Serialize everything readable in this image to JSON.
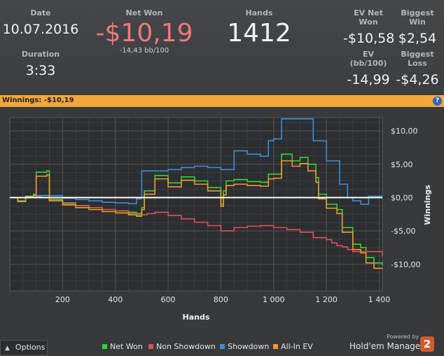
{
  "stats": {
    "date_label": "Date",
    "date_value": "10.07.2016",
    "duration_label": "Duration",
    "duration_value": "3:33",
    "net_won_label": "Net Won",
    "net_won_value": "-$10,19",
    "net_won_sub": "-14,43 bb/100",
    "hands_label": "Hands",
    "hands_value": "1412",
    "ev_net_won_label": "EV Net Won",
    "ev_net_won_value": "-$10,58",
    "biggest_win_label": "Biggest Win",
    "biggest_win_value": "$2,54",
    "ev_bb_label": "EV (bb/100)",
    "ev_bb_value": "-14,99",
    "biggest_loss_label": "Biggest Loss",
    "biggest_loss_value": "-$4,26"
  },
  "header_bar": {
    "label": "Winnings: ",
    "value": "-$10,19",
    "help_icon": "?"
  },
  "footer": {
    "options_label": "Options",
    "options_icon": "chevron-up-icon",
    "powered_by": "Powered by",
    "brand_name": "Hold'em Manager",
    "brand_badge": "2"
  },
  "chart_data": {
    "type": "line",
    "xlabel": "Hands",
    "ylabel": "Winnings",
    "xlim": [
      0,
      1412
    ],
    "ylim": [
      -14,
      12
    ],
    "x_ticks": [
      200,
      400,
      600,
      800,
      1000,
      1200,
      1400
    ],
    "x_tick_labels": [
      "200",
      "400",
      "600",
      "800",
      "1 000",
      "1 200",
      "1 400"
    ],
    "y_ticks": [
      10,
      5,
      0,
      -5,
      -10
    ],
    "y_tick_labels": [
      "$10,00",
      "$5,00",
      "$0,00",
      "-$5,00",
      "-$10,00"
    ],
    "grid": true,
    "legend_position": "bottom",
    "zero_line_color": "#ffffff",
    "series": [
      {
        "name": "Net Won",
        "color": "#33d633",
        "points": [
          [
            0,
            0
          ],
          [
            30,
            -0.5
          ],
          [
            60,
            0.2
          ],
          [
            90,
            0.5
          ],
          [
            100,
            3.8
          ],
          [
            140,
            4.0
          ],
          [
            150,
            -0.3
          ],
          [
            200,
            -0.8
          ],
          [
            250,
            -1.2
          ],
          [
            300,
            -1.5
          ],
          [
            350,
            -1.8
          ],
          [
            400,
            -2.0
          ],
          [
            450,
            -2.2
          ],
          [
            480,
            -2.4
          ],
          [
            500,
            -1.5
          ],
          [
            510,
            1.0
          ],
          [
            550,
            3.3
          ],
          [
            600,
            2.2
          ],
          [
            650,
            3.1
          ],
          [
            700,
            2.5
          ],
          [
            750,
            1.5
          ],
          [
            800,
            -1.0
          ],
          [
            810,
            1.0
          ],
          [
            820,
            2.5
          ],
          [
            850,
            2.7
          ],
          [
            900,
            2.4
          ],
          [
            950,
            2.3
          ],
          [
            980,
            3.5
          ],
          [
            1000,
            3.5
          ],
          [
            1030,
            6.5
          ],
          [
            1070,
            5.5
          ],
          [
            1100,
            6.0
          ],
          [
            1130,
            5.0
          ],
          [
            1160,
            3.0
          ],
          [
            1170,
            0.5
          ],
          [
            1200,
            -1.0
          ],
          [
            1240,
            -1.8
          ],
          [
            1260,
            -4.5
          ],
          [
            1300,
            -7.0
          ],
          [
            1330,
            -7.5
          ],
          [
            1350,
            -9.0
          ],
          [
            1380,
            -9.8
          ],
          [
            1412,
            -10.19
          ]
        ]
      },
      {
        "name": "Non Showdown",
        "color": "#e05050",
        "points": [
          [
            0,
            0
          ],
          [
            100,
            0.3
          ],
          [
            150,
            -0.5
          ],
          [
            200,
            -0.9
          ],
          [
            250,
            -1.2
          ],
          [
            300,
            -1.5
          ],
          [
            350,
            -1.8
          ],
          [
            400,
            -2.0
          ],
          [
            450,
            -2.4
          ],
          [
            480,
            -2.6
          ],
          [
            520,
            -2.4
          ],
          [
            550,
            -2.2
          ],
          [
            600,
            -2.7
          ],
          [
            650,
            -3.2
          ],
          [
            700,
            -3.7
          ],
          [
            750,
            -4.2
          ],
          [
            800,
            -5.0
          ],
          [
            850,
            -4.5
          ],
          [
            900,
            -4.3
          ],
          [
            950,
            -4.2
          ],
          [
            1000,
            -4.5
          ],
          [
            1050,
            -4.8
          ],
          [
            1100,
            -5.2
          ],
          [
            1150,
            -6.0
          ],
          [
            1200,
            -6.3
          ],
          [
            1220,
            -6.8
          ],
          [
            1240,
            -7.2
          ],
          [
            1260,
            -7.4
          ],
          [
            1280,
            -7.8
          ],
          [
            1300,
            -8.1
          ],
          [
            1412,
            -8.8
          ]
        ]
      },
      {
        "name": "Showdown",
        "color": "#3a8fdc",
        "points": [
          [
            0,
            0
          ],
          [
            100,
            0.2
          ],
          [
            120,
            0.3
          ],
          [
            200,
            -0.1
          ],
          [
            250,
            -0.3
          ],
          [
            300,
            -0.5
          ],
          [
            350,
            -0.7
          ],
          [
            400,
            -0.8
          ],
          [
            450,
            -0.9
          ],
          [
            480,
            -0.2
          ],
          [
            500,
            4.0
          ],
          [
            550,
            4.0
          ],
          [
            600,
            4.2
          ],
          [
            650,
            4.5
          ],
          [
            700,
            4.7
          ],
          [
            750,
            4.5
          ],
          [
            800,
            4.2
          ],
          [
            850,
            7.0
          ],
          [
            900,
            6.5
          ],
          [
            950,
            6.2
          ],
          [
            980,
            8.5
          ],
          [
            1000,
            8.8
          ],
          [
            1030,
            11.8
          ],
          [
            1070,
            11.8
          ],
          [
            1120,
            11.8
          ],
          [
            1150,
            8.5
          ],
          [
            1200,
            5.5
          ],
          [
            1250,
            2.0
          ],
          [
            1280,
            0.0
          ],
          [
            1300,
            -0.5
          ],
          [
            1330,
            -1.0
          ],
          [
            1360,
            0.2
          ],
          [
            1412,
            0.2
          ]
        ]
      },
      {
        "name": "All-In EV",
        "color": "#ef9a2a",
        "points": [
          [
            0,
            0
          ],
          [
            30,
            -0.6
          ],
          [
            60,
            0.1
          ],
          [
            90,
            0.3
          ],
          [
            100,
            3.2
          ],
          [
            140,
            3.4
          ],
          [
            150,
            -0.5
          ],
          [
            200,
            -1.1
          ],
          [
            250,
            -1.5
          ],
          [
            300,
            -1.8
          ],
          [
            350,
            -2.1
          ],
          [
            400,
            -2.3
          ],
          [
            450,
            -2.6
          ],
          [
            480,
            -2.8
          ],
          [
            500,
            -1.8
          ],
          [
            510,
            0.5
          ],
          [
            550,
            2.8
          ],
          [
            600,
            1.6
          ],
          [
            650,
            2.6
          ],
          [
            700,
            2.0
          ],
          [
            750,
            1.0
          ],
          [
            800,
            -1.3
          ],
          [
            810,
            0.4
          ],
          [
            820,
            1.8
          ],
          [
            850,
            2.0
          ],
          [
            900,
            1.8
          ],
          [
            950,
            1.7
          ],
          [
            980,
            2.8
          ],
          [
            1000,
            2.9
          ],
          [
            1030,
            5.5
          ],
          [
            1070,
            4.7
          ],
          [
            1100,
            5.1
          ],
          [
            1130,
            4.0
          ],
          [
            1160,
            2.3
          ],
          [
            1170,
            -0.2
          ],
          [
            1200,
            -1.6
          ],
          [
            1240,
            -2.4
          ],
          [
            1260,
            -5.2
          ],
          [
            1300,
            -7.8
          ],
          [
            1330,
            -8.3
          ],
          [
            1350,
            -9.8
          ],
          [
            1380,
            -10.6
          ],
          [
            1412,
            -10.58
          ]
        ]
      }
    ]
  }
}
